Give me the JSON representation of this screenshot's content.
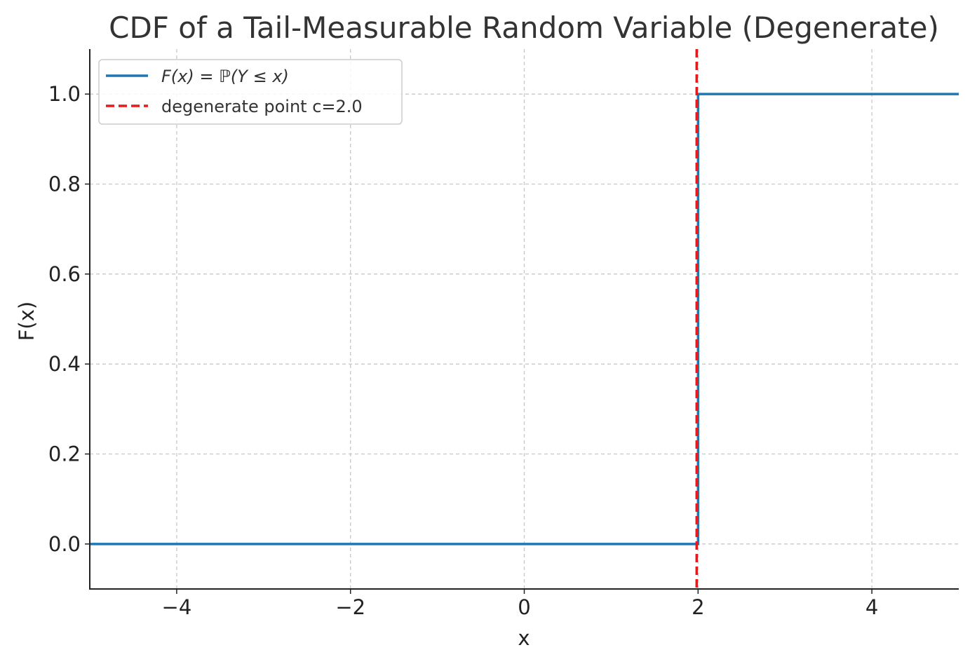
{
  "chart_data": {
    "type": "line",
    "title": "CDF of a Tail-Measurable Random Variable (Degenerate)",
    "xlabel": "x",
    "ylabel": "F(x)",
    "xlim": [
      -5,
      5
    ],
    "ylim": [
      -0.1,
      1.1
    ],
    "xticks": [
      -4,
      -2,
      0,
      2,
      4
    ],
    "xtick_labels": [
      "−4",
      "−2",
      "0",
      "2",
      "4"
    ],
    "yticks": [
      0.0,
      0.2,
      0.4,
      0.6,
      0.8,
      1.0
    ],
    "ytick_labels": [
      "0.0",
      "0.2",
      "0.4",
      "0.6",
      "0.8",
      "1.0"
    ],
    "grid": true,
    "legend_position": "top-left",
    "series": [
      {
        "name": "F(x) = ℙ(Y ≤ x)",
        "style": "solid",
        "color": "#1f77b4",
        "x": [
          -5,
          2,
          2,
          5
        ],
        "y": [
          0,
          0,
          1,
          1
        ]
      }
    ],
    "vlines": [
      {
        "name": "degenerate point c=2.0",
        "x": 2.0,
        "style": "dashed",
        "color": "#e41a1c"
      }
    ]
  }
}
